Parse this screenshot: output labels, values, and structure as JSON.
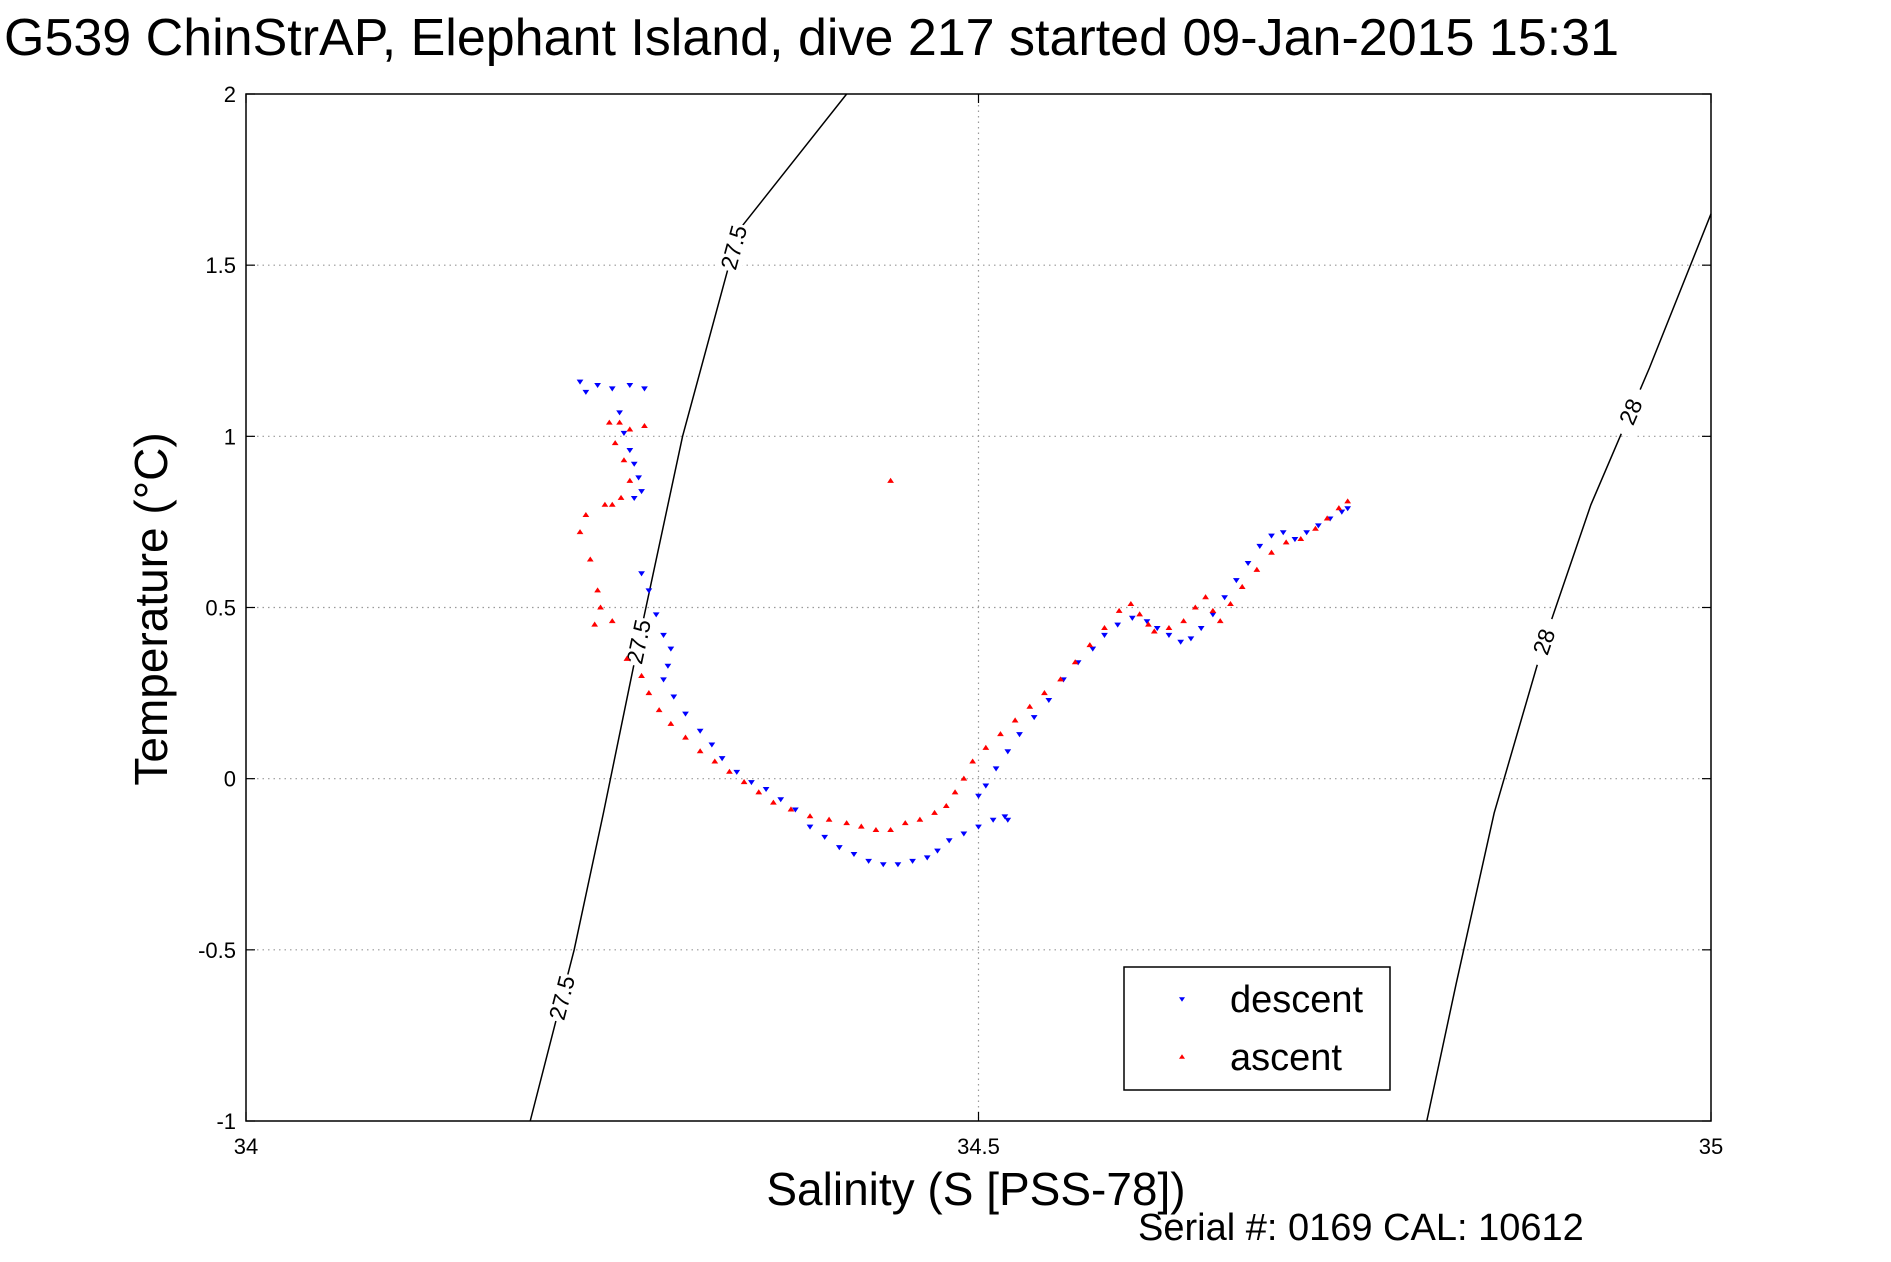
{
  "footer": "Serial #: 0169 CAL: 10612",
  "colors": {
    "descent": "#0000ff",
    "ascent": "#ff0000",
    "contour": "#000000",
    "grid": "#999999"
  },
  "chart_data": {
    "type": "scatter",
    "title": "G539 ChinStrAP, Elephant Island, dive 217 started 09-Jan-2015 15:31",
    "xlabel": "Salinity (S [PSS-78])",
    "ylabel": "Temperature (°C)",
    "xlim": [
      34,
      35
    ],
    "ylim": [
      -1,
      2
    ],
    "xticks": [
      34,
      34.5,
      35
    ],
    "xtick_labels": [
      "34",
      "34.5",
      "35"
    ],
    "yticks": [
      -1,
      -0.5,
      0,
      0.5,
      1,
      1.5,
      2
    ],
    "ytick_labels": [
      "-1",
      "-0.5",
      "0",
      "0.5",
      "1",
      "1.5",
      "2"
    ],
    "grid": true,
    "legend_position": "bottom-right",
    "series": [
      {
        "name": "descent",
        "marker": "triangle-down",
        "color": "#0000ff",
        "points": [
          [
            34.228,
            1.16
          ],
          [
            34.232,
            1.13
          ],
          [
            34.24,
            1.15
          ],
          [
            34.25,
            1.14
          ],
          [
            34.262,
            1.15
          ],
          [
            34.272,
            1.14
          ],
          [
            34.255,
            1.07
          ],
          [
            34.258,
            1.01
          ],
          [
            34.262,
            0.96
          ],
          [
            34.265,
            0.92
          ],
          [
            34.268,
            0.88
          ],
          [
            34.27,
            0.84
          ],
          [
            34.265,
            0.82
          ],
          [
            34.27,
            0.6
          ],
          [
            34.275,
            0.55
          ],
          [
            34.28,
            0.48
          ],
          [
            34.285,
            0.42
          ],
          [
            34.29,
            0.38
          ],
          [
            34.288,
            0.33
          ],
          [
            34.285,
            0.29
          ],
          [
            34.292,
            0.24
          ],
          [
            34.3,
            0.19
          ],
          [
            34.31,
            0.14
          ],
          [
            34.318,
            0.1
          ],
          [
            34.325,
            0.06
          ],
          [
            34.335,
            0.02
          ],
          [
            34.345,
            -0.01
          ],
          [
            34.355,
            -0.03
          ],
          [
            34.365,
            -0.06
          ],
          [
            34.375,
            -0.09
          ],
          [
            34.385,
            -0.14
          ],
          [
            34.395,
            -0.17
          ],
          [
            34.405,
            -0.2
          ],
          [
            34.415,
            -0.22
          ],
          [
            34.425,
            -0.24
          ],
          [
            34.435,
            -0.25
          ],
          [
            34.445,
            -0.25
          ],
          [
            34.455,
            -0.24
          ],
          [
            34.465,
            -0.23
          ],
          [
            34.472,
            -0.21
          ],
          [
            34.48,
            -0.18
          ],
          [
            34.49,
            -0.16
          ],
          [
            34.5,
            -0.14
          ],
          [
            34.51,
            -0.12
          ],
          [
            34.518,
            -0.11
          ],
          [
            34.52,
            -0.12
          ],
          [
            34.5,
            -0.05
          ],
          [
            34.505,
            -0.02
          ],
          [
            34.512,
            0.03
          ],
          [
            34.52,
            0.08
          ],
          [
            34.528,
            0.13
          ],
          [
            34.538,
            0.18
          ],
          [
            34.548,
            0.23
          ],
          [
            34.558,
            0.29
          ],
          [
            34.568,
            0.34
          ],
          [
            34.578,
            0.38
          ],
          [
            34.586,
            0.42
          ],
          [
            34.595,
            0.45
          ],
          [
            34.605,
            0.47
          ],
          [
            34.615,
            0.46
          ],
          [
            34.622,
            0.44
          ],
          [
            34.63,
            0.42
          ],
          [
            34.638,
            0.4
          ],
          [
            34.645,
            0.41
          ],
          [
            34.652,
            0.44
          ],
          [
            34.66,
            0.48
          ],
          [
            34.668,
            0.53
          ],
          [
            34.676,
            0.58
          ],
          [
            34.684,
            0.63
          ],
          [
            34.692,
            0.68
          ],
          [
            34.7,
            0.71
          ],
          [
            34.708,
            0.72
          ],
          [
            34.716,
            0.7
          ],
          [
            34.724,
            0.72
          ],
          [
            34.732,
            0.74
          ],
          [
            34.74,
            0.76
          ],
          [
            34.748,
            0.78
          ],
          [
            34.752,
            0.79
          ]
        ]
      },
      {
        "name": "ascent",
        "marker": "triangle-up",
        "color": "#ff0000",
        "points": [
          [
            34.248,
            1.04
          ],
          [
            34.255,
            1.04
          ],
          [
            34.262,
            1.02
          ],
          [
            34.272,
            1.03
          ],
          [
            34.252,
            0.98
          ],
          [
            34.258,
            0.93
          ],
          [
            34.262,
            0.87
          ],
          [
            34.256,
            0.82
          ],
          [
            34.25,
            0.8
          ],
          [
            34.245,
            0.8
          ],
          [
            34.232,
            0.77
          ],
          [
            34.228,
            0.72
          ],
          [
            34.235,
            0.64
          ],
          [
            34.24,
            0.55
          ],
          [
            34.242,
            0.5
          ],
          [
            34.238,
            0.45
          ],
          [
            34.25,
            0.46
          ],
          [
            34.26,
            0.35
          ],
          [
            34.27,
            0.3
          ],
          [
            34.275,
            0.25
          ],
          [
            34.282,
            0.2
          ],
          [
            34.29,
            0.16
          ],
          [
            34.3,
            0.12
          ],
          [
            34.31,
            0.08
          ],
          [
            34.32,
            0.05
          ],
          [
            34.33,
            0.02
          ],
          [
            34.34,
            -0.01
          ],
          [
            34.35,
            -0.04
          ],
          [
            34.36,
            -0.07
          ],
          [
            34.372,
            -0.09
          ],
          [
            34.385,
            -0.11
          ],
          [
            34.398,
            -0.12
          ],
          [
            34.41,
            -0.13
          ],
          [
            34.42,
            -0.14
          ],
          [
            34.43,
            -0.15
          ],
          [
            34.44,
            -0.15
          ],
          [
            34.45,
            -0.13
          ],
          [
            34.46,
            -0.12
          ],
          [
            34.47,
            -0.1
          ],
          [
            34.478,
            -0.08
          ],
          [
            34.484,
            -0.04
          ],
          [
            34.49,
            0.0
          ],
          [
            34.496,
            0.05
          ],
          [
            34.505,
            0.09
          ],
          [
            34.515,
            0.13
          ],
          [
            34.525,
            0.17
          ],
          [
            34.535,
            0.21
          ],
          [
            34.545,
            0.25
          ],
          [
            34.556,
            0.29
          ],
          [
            34.566,
            0.34
          ],
          [
            34.576,
            0.39
          ],
          [
            34.586,
            0.44
          ],
          [
            34.596,
            0.49
          ],
          [
            34.604,
            0.51
          ],
          [
            34.61,
            0.48
          ],
          [
            34.616,
            0.45
          ],
          [
            34.62,
            0.43
          ],
          [
            34.63,
            0.44
          ],
          [
            34.64,
            0.46
          ],
          [
            34.648,
            0.5
          ],
          [
            34.655,
            0.53
          ],
          [
            34.66,
            0.49
          ],
          [
            34.665,
            0.46
          ],
          [
            34.672,
            0.51
          ],
          [
            34.68,
            0.56
          ],
          [
            34.69,
            0.61
          ],
          [
            34.7,
            0.66
          ],
          [
            34.71,
            0.69
          ],
          [
            34.72,
            0.7
          ],
          [
            34.73,
            0.73
          ],
          [
            34.738,
            0.76
          ],
          [
            34.746,
            0.79
          ],
          [
            34.752,
            0.81
          ],
          [
            34.44,
            0.87
          ]
        ]
      }
    ],
    "density_contours": [
      {
        "label": "27.5",
        "points": [
          [
            34.194,
            -1.0
          ],
          [
            34.224,
            -0.5
          ],
          [
            34.244,
            -0.1
          ],
          [
            34.268,
            0.4
          ],
          [
            34.298,
            1.0
          ],
          [
            34.336,
            1.6
          ],
          [
            34.41,
            2.0
          ]
        ]
      },
      {
        "label": "28",
        "points": [
          [
            34.806,
            -1.0
          ],
          [
            34.826,
            -0.6
          ],
          [
            34.852,
            -0.1
          ],
          [
            34.886,
            0.4
          ],
          [
            34.918,
            0.8
          ],
          [
            34.958,
            1.2
          ],
          [
            35.0,
            1.65
          ]
        ]
      }
    ]
  }
}
